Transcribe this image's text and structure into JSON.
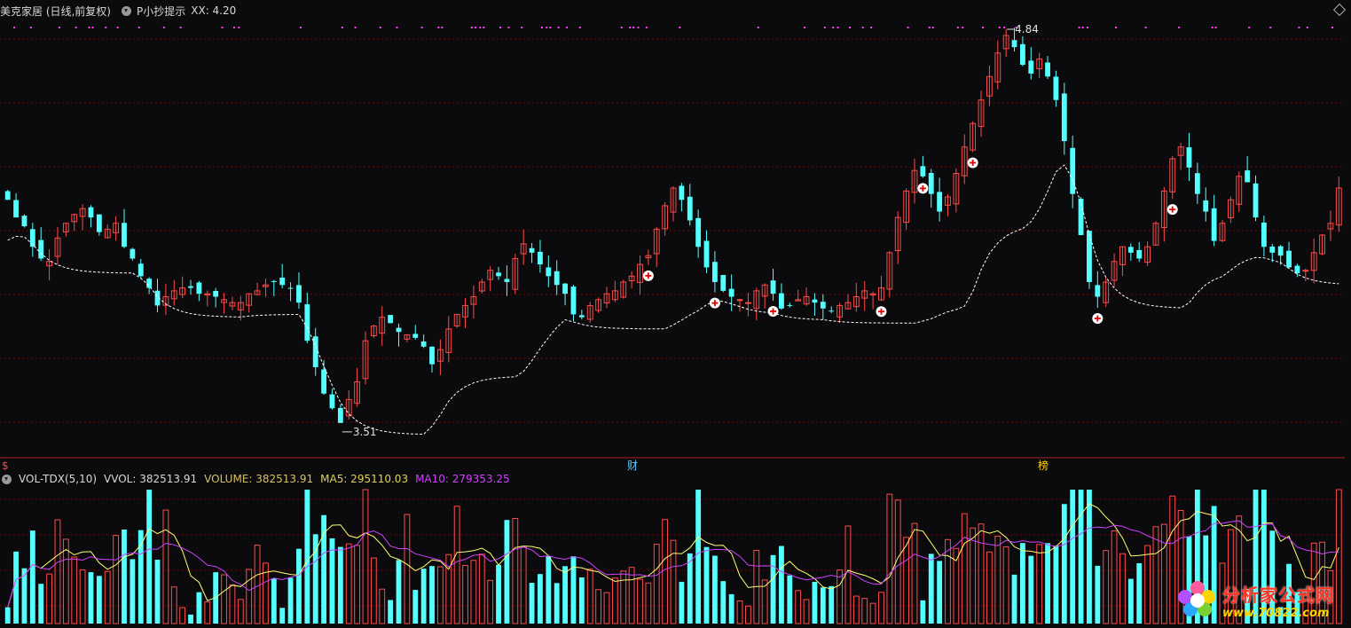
{
  "header": {
    "title": "美克家居 (日线,前复权)",
    "indicator_name": "P小抄提示",
    "indicator_value": "XX: 4.20"
  },
  "volume_header": {
    "indicator": "VOL-TDX(5,10)",
    "vvol": "VVOL: 382513.91",
    "volume": "VOLUME: 382513.91",
    "ma5": "MA5: 295110.03",
    "ma10": "MA10: 279353.25"
  },
  "markers": {
    "high_label": "4.84",
    "low_label": "3.51",
    "event_cai": "财",
    "event_bang": "榜",
    "dollar": "$"
  },
  "watermark": {
    "main": "分析家公式网",
    "sub": "www.70822.com"
  },
  "colors": {
    "up": "#ff4a4a",
    "down": "#54ffff",
    "magenta": "#ff40ff",
    "ma5": "#ffff70",
    "ma10": "#d040ff",
    "stopline": "#ffffff",
    "grid": "#7a0000"
  },
  "chart_data": {
    "type": "candlestick",
    "price_range": [
      3.45,
      4.87
    ],
    "closes": [
      4.28,
      4.22,
      4.19,
      4.12,
      4.08,
      4.07,
      4.15,
      4.2,
      4.23,
      4.25,
      4.22,
      4.17,
      4.18,
      4.2,
      4.12,
      4.08,
      4.02,
      3.98,
      3.92,
      3.95,
      3.97,
      3.98,
      3.98,
      3.96,
      3.96,
      3.95,
      3.94,
      3.93,
      3.93,
      3.96,
      3.97,
      3.99,
      4.0,
      3.99,
      3.98,
      3.93,
      3.8,
      3.71,
      3.62,
      3.57,
      3.52,
      3.6,
      3.66,
      3.8,
      3.85,
      3.88,
      3.86,
      3.83,
      3.82,
      3.81,
      3.78,
      3.72,
      3.77,
      3.84,
      3.89,
      3.92,
      3.95,
      4.0,
      4.04,
      4.02,
      4.0,
      4.08,
      4.13,
      4.1,
      4.06,
      4.02,
      3.99,
      3.96,
      3.89,
      3.88,
      3.92,
      3.94,
      3.96,
      3.97,
      4.0,
      4.02,
      4.06,
      4.09,
      4.18,
      4.26,
      4.32,
      4.28,
      4.21,
      4.12,
      4.05,
      4.0,
      3.97,
      3.95,
      3.94,
      3.93,
      3.97,
      3.99,
      3.96,
      3.91,
      3.92,
      3.94,
      3.95,
      3.93,
      3.91,
      3.9,
      3.92,
      3.93,
      3.95,
      3.97,
      3.96,
      3.98,
      4.1,
      4.22,
      4.31,
      4.38,
      4.36,
      4.3,
      4.24,
      4.29,
      4.37,
      4.46,
      4.54,
      4.62,
      4.7,
      4.78,
      4.84,
      4.8,
      4.74,
      4.71,
      4.76,
      4.7,
      4.62,
      4.48,
      4.3,
      4.16,
      4.0,
      3.95,
      4.0,
      4.07,
      4.12,
      4.1,
      4.08,
      4.12,
      4.2,
      4.31,
      4.42,
      4.46,
      4.39,
      4.3,
      4.24,
      4.14,
      4.2,
      4.28,
      4.36,
      4.34,
      4.22,
      4.12,
      4.1,
      4.09,
      4.05,
      4.03,
      4.04,
      4.1,
      4.16,
      4.2,
      4.32
    ],
    "volume_ma_labels": [
      "MA5",
      "MA10"
    ]
  }
}
